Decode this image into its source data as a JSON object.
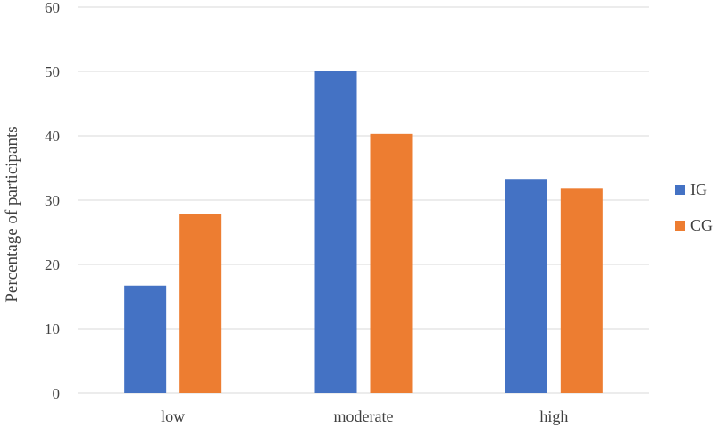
{
  "chart_data": {
    "type": "bar",
    "title": "",
    "xlabel": "",
    "ylabel": "Percentage of participants",
    "ylim": [
      0,
      60
    ],
    "yticks": [
      0,
      10,
      20,
      30,
      40,
      50,
      60
    ],
    "grid": true,
    "legend_position": "right",
    "categories": [
      "low",
      "moderate",
      "high"
    ],
    "series": [
      {
        "name": "IG",
        "color": "#4472c4",
        "values": [
          16.7,
          50.0,
          33.3
        ]
      },
      {
        "name": "CG",
        "color": "#ed7d31",
        "values": [
          27.8,
          40.3,
          31.9
        ]
      }
    ]
  }
}
